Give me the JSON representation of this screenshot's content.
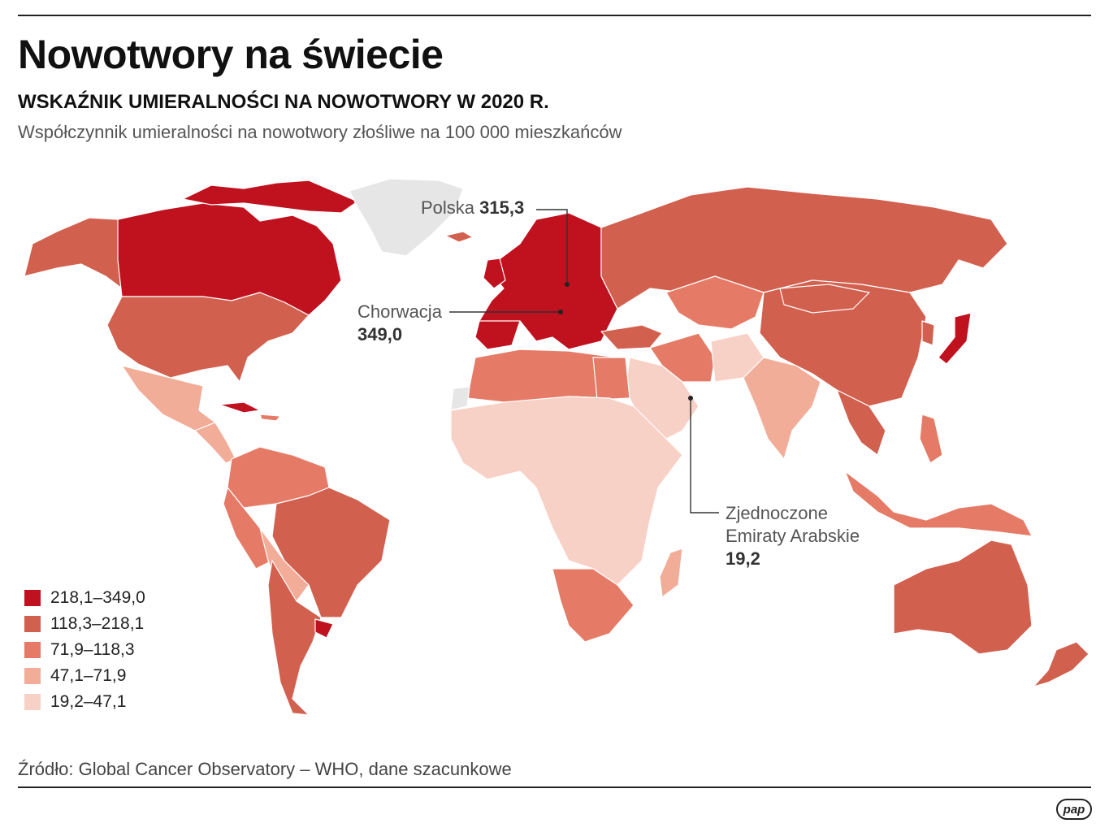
{
  "header": {
    "title": "Nowotwory na świecie",
    "subtitle": "WSKAŹNIK UMIERALNOŚCI NA NOWOTWORY W 2020 R.",
    "description": "Współczynnik umieralności na nowotwory złośliwe na 100 000 mieszkańców"
  },
  "colors": {
    "class1": "#c0111f",
    "class2": "#d2604f",
    "class3": "#e57b66",
    "class4": "#f2ad99",
    "class5": "#f8d1c6",
    "nodata": "#e6e6e6"
  },
  "legend": [
    {
      "label": "218,1–349,0",
      "color": "#c0111f"
    },
    {
      "label": "118,3–218,1",
      "color": "#d2604f"
    },
    {
      "label": "71,9–118,3",
      "color": "#e57b66"
    },
    {
      "label": "47,1–71,9",
      "color": "#f2ad99"
    },
    {
      "label": "19,2–47,1",
      "color": "#f8d1c6"
    }
  ],
  "callouts": {
    "poland": {
      "name": "Polska",
      "value": "315,3"
    },
    "croatia": {
      "name": "Chorwacja",
      "value": "349,0"
    },
    "uae": {
      "name_line1": "Zjednoczone",
      "name_line2": "Emiraty Arabskie",
      "value": "19,2"
    }
  },
  "source": "Źródło: Global Cancer Observatory – WHO, dane szacunkowe",
  "logo": "pap"
}
